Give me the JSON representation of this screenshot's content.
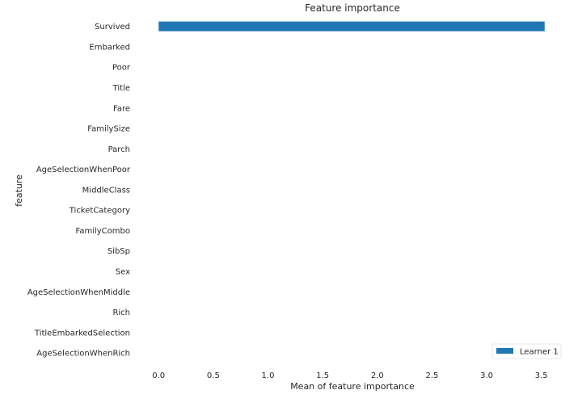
{
  "chart_data": {
    "type": "bar",
    "orientation": "horizontal",
    "title": "Feature importance",
    "xlabel": "Mean of feature importance",
    "ylabel": "feature",
    "categories": [
      "Survived",
      "Embarked",
      "Poor",
      "Title",
      "Fare",
      "FamilySize",
      "Parch",
      "AgeSelectionWhenPoor",
      "MiddleClass",
      "TicketCategory",
      "FamilyCombo",
      "SibSp",
      "Sex",
      "AgeSelectionWhenMiddle",
      "Rich",
      "TitleEmbarkedSelection",
      "AgeSelectionWhenRich"
    ],
    "series": [
      {
        "name": "Learner 1",
        "color": "#1f77b4",
        "values": [
          3.53,
          0,
          0,
          0,
          0,
          0,
          0,
          0,
          0,
          0,
          0,
          0,
          0,
          0,
          0,
          0,
          0
        ]
      }
    ],
    "xticks": [
      "0.0",
      "0.5",
      "1.0",
      "1.5",
      "2.0",
      "2.5",
      "3.0",
      "3.5"
    ],
    "xlim": [
      -0.12,
      3.65
    ],
    "grid": false,
    "legend_position": "lower-right"
  }
}
